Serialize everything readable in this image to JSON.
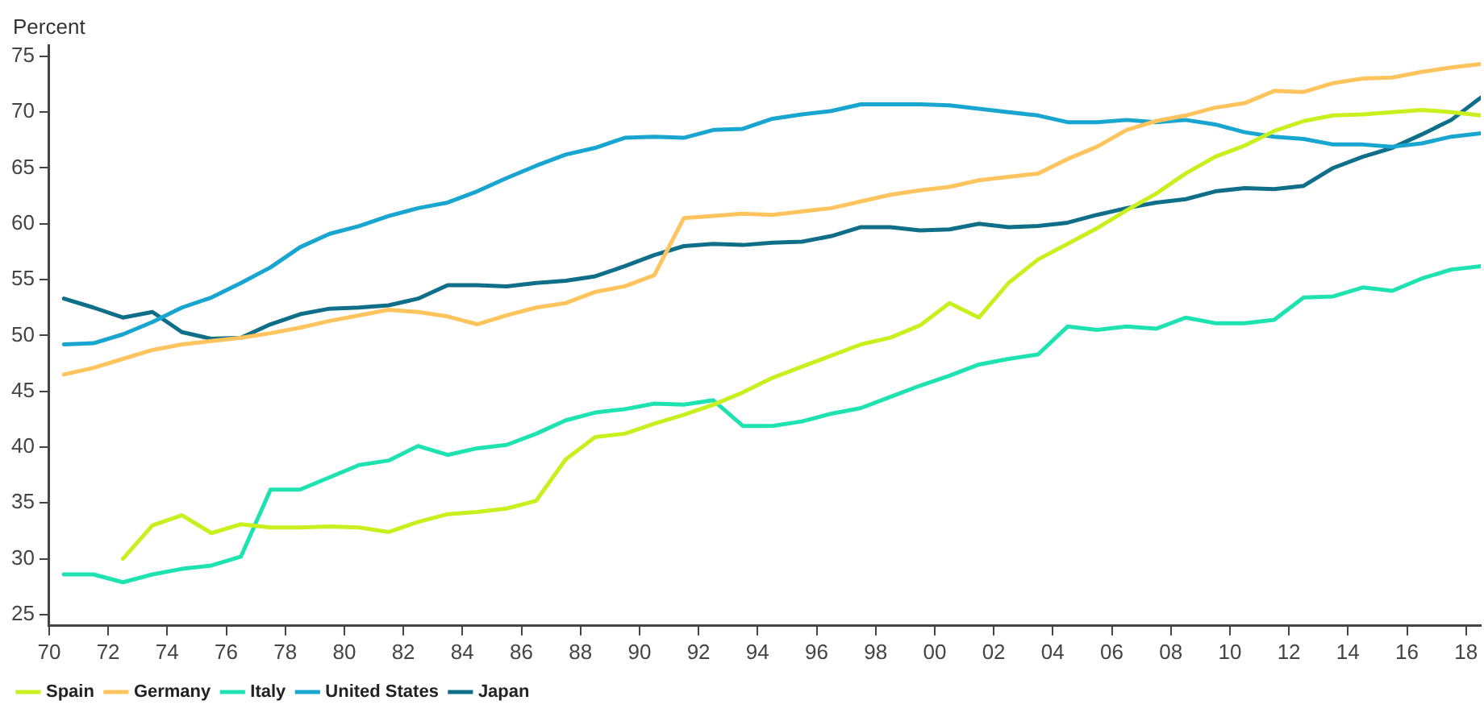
{
  "chart_data": {
    "type": "line",
    "ylabel": "Percent",
    "legend": "bottom left",
    "grid": false,
    "marker": "none",
    "line_style": "solid",
    "x": [
      1970.5,
      1971.5,
      1972.5,
      1973.5,
      1974.5,
      1975.5,
      1976.5,
      1977.5,
      1978.5,
      1979.5,
      1980.5,
      1981.5,
      1982.5,
      1983.5,
      1984.5,
      1985.5,
      1986.5,
      1987.5,
      1988.5,
      1989.5,
      1990.5,
      1991.5,
      1992.5,
      1993.5,
      1994.5,
      1995.5,
      1996.5,
      1997.5,
      1998.5,
      1999.5,
      2000.5,
      2001.5,
      2002.5,
      2003.5,
      2004.5,
      2005.5,
      2006.5,
      2007.5,
      2008.5,
      2009.5,
      2010.5,
      2011.5,
      2012.5,
      2013.5,
      2014.5,
      2015.5,
      2016.5,
      2017.5,
      2018.5
    ],
    "xlim": [
      1970,
      2018.5
    ],
    "xticks": [
      {
        "value": 1970,
        "label": "70"
      },
      {
        "value": 1972,
        "label": "72"
      },
      {
        "value": 1974,
        "label": "74"
      },
      {
        "value": 1976,
        "label": "76"
      },
      {
        "value": 1978,
        "label": "78"
      },
      {
        "value": 1980,
        "label": "80"
      },
      {
        "value": 1982,
        "label": "82"
      },
      {
        "value": 1984,
        "label": "84"
      },
      {
        "value": 1986,
        "label": "86"
      },
      {
        "value": 1988,
        "label": "88"
      },
      {
        "value": 1990,
        "label": "90"
      },
      {
        "value": 1992,
        "label": "92"
      },
      {
        "value": 1994,
        "label": "94"
      },
      {
        "value": 1996,
        "label": "96"
      },
      {
        "value": 1998,
        "label": "98"
      },
      {
        "value": 2000,
        "label": "00"
      },
      {
        "value": 2002,
        "label": "02"
      },
      {
        "value": 2004,
        "label": "04"
      },
      {
        "value": 2006,
        "label": "06"
      },
      {
        "value": 2008,
        "label": "08"
      },
      {
        "value": 2010,
        "label": "10"
      },
      {
        "value": 2012,
        "label": "12"
      },
      {
        "value": 2014,
        "label": "14"
      },
      {
        "value": 2016,
        "label": "16"
      },
      {
        "value": 2018,
        "label": "18"
      }
    ],
    "ylim": [
      24,
      76
    ],
    "yticks": [
      25,
      30,
      35,
      40,
      45,
      50,
      55,
      60,
      65,
      70,
      75
    ],
    "series": [
      {
        "name": "Spain",
        "color": "#c8f01e",
        "values": [
          null,
          null,
          30.0,
          33.0,
          33.9,
          32.3,
          33.1,
          32.8,
          32.8,
          32.9,
          32.8,
          32.4,
          33.3,
          34.0,
          34.2,
          34.5,
          35.2,
          38.9,
          40.9,
          41.2,
          42.1,
          42.9,
          43.8,
          44.9,
          46.2,
          47.2,
          48.2,
          49.2,
          49.8,
          50.9,
          52.9,
          51.6,
          54.7,
          56.8,
          58.2,
          59.6,
          61.2,
          62.7,
          64.5,
          66.0,
          67.0,
          68.3,
          69.2,
          69.7,
          69.8,
          70.0,
          70.2,
          70.0,
          69.7
        ]
      },
      {
        "name": "Germany",
        "color": "#ffc45e",
        "values": [
          46.5,
          47.1,
          47.9,
          48.7,
          49.2,
          49.5,
          49.8,
          50.2,
          50.7,
          51.3,
          51.8,
          52.3,
          52.1,
          51.7,
          51.0,
          51.8,
          52.5,
          52.9,
          53.9,
          54.4,
          55.4,
          60.5,
          60.7,
          60.9,
          60.8,
          61.1,
          61.4,
          62.0,
          62.6,
          63.0,
          63.3,
          63.9,
          64.2,
          64.5,
          65.8,
          66.9,
          68.4,
          69.2,
          69.7,
          70.4,
          70.8,
          71.9,
          71.8,
          72.6,
          73.0,
          73.1,
          73.6,
          74.0,
          74.3
        ]
      },
      {
        "name": "Italy",
        "color": "#1ee3b0",
        "values": [
          28.6,
          28.6,
          27.9,
          28.6,
          29.1,
          29.4,
          30.2,
          36.2,
          36.2,
          37.3,
          38.4,
          38.8,
          40.1,
          39.3,
          39.9,
          40.2,
          41.2,
          42.4,
          43.1,
          43.4,
          43.9,
          43.8,
          44.2,
          41.9,
          41.9,
          42.3,
          43.0,
          43.5,
          44.5,
          45.5,
          46.4,
          47.4,
          47.9,
          48.3,
          50.8,
          50.5,
          50.8,
          50.6,
          51.6,
          51.1,
          51.1,
          51.4,
          53.4,
          53.5,
          54.3,
          54.0,
          55.1,
          55.9,
          56.2
        ]
      },
      {
        "name": "United States",
        "color": "#18a6d0",
        "values": [
          49.2,
          49.3,
          50.1,
          51.2,
          52.5,
          53.4,
          54.7,
          56.1,
          57.9,
          59.1,
          59.8,
          60.7,
          61.4,
          61.9,
          62.9,
          64.1,
          65.2,
          66.2,
          66.8,
          67.7,
          67.8,
          67.7,
          68.4,
          68.5,
          69.4,
          69.8,
          70.1,
          70.7,
          70.7,
          70.7,
          70.6,
          70.3,
          70.0,
          69.7,
          69.1,
          69.1,
          69.3,
          69.1,
          69.3,
          68.9,
          68.2,
          67.8,
          67.6,
          67.1,
          67.1,
          66.9,
          67.2,
          67.8,
          68.1
        ]
      },
      {
        "name": "Japan",
        "color": "#0f6e88",
        "values": [
          53.3,
          52.5,
          51.6,
          52.1,
          50.3,
          49.7,
          49.8,
          51.0,
          51.9,
          52.4,
          52.5,
          52.7,
          53.3,
          54.5,
          54.5,
          54.4,
          54.7,
          54.9,
          55.3,
          56.2,
          57.2,
          58.0,
          58.2,
          58.1,
          58.3,
          58.4,
          58.9,
          59.7,
          59.7,
          59.4,
          59.5,
          60.0,
          59.7,
          59.8,
          60.1,
          60.8,
          61.4,
          61.9,
          62.2,
          62.9,
          63.2,
          63.1,
          63.4,
          65.0,
          66.0,
          66.8,
          68.0,
          69.3,
          71.3
        ]
      }
    ]
  }
}
